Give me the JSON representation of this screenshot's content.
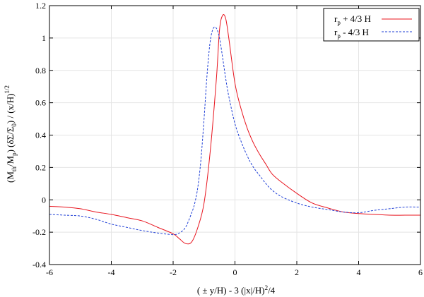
{
  "chart_data": {
    "type": "line",
    "xlabel": "( ± y/H) - 3 (|x|/H)²/4",
    "ylabel": "(M_th/M_p) (δΣ/Σ₀) / (x/H)^1/2",
    "xlim": [
      -6,
      6
    ],
    "ylim": [
      -0.4,
      1.2
    ],
    "xticks": [
      -6,
      -4,
      -2,
      0,
      2,
      4,
      6
    ],
    "yticks": [
      -0.4,
      -0.2,
      0,
      0.2,
      0.4,
      0.6,
      0.8,
      1,
      1.2
    ],
    "grid": true,
    "legend_position": "top-right",
    "series": [
      {
        "name": "rp + 4/3 H",
        "color": "#e8141e",
        "dash": "solid",
        "x": [
          -6.0,
          -5.5,
          -5.0,
          -4.5,
          -4.0,
          -3.5,
          -3.0,
          -2.5,
          -2.0,
          -1.8,
          -1.6,
          -1.4,
          -1.2,
          -1.0,
          -0.8,
          -0.6,
          -0.5,
          -0.4,
          -0.3,
          -0.2,
          0.0,
          0.2,
          0.4,
          0.6,
          0.8,
          1.0,
          1.2,
          1.5,
          2.0,
          2.5,
          3.0,
          3.5,
          4.0,
          4.5,
          5.0,
          5.5,
          6.0
        ],
        "y": [
          -0.04,
          -0.045,
          -0.055,
          -0.075,
          -0.09,
          -0.11,
          -0.13,
          -0.17,
          -0.21,
          -0.24,
          -0.27,
          -0.26,
          -0.17,
          -0.02,
          0.3,
          0.75,
          1.05,
          1.14,
          1.12,
          1.0,
          0.72,
          0.56,
          0.44,
          0.35,
          0.28,
          0.22,
          0.16,
          0.11,
          0.04,
          -0.02,
          -0.05,
          -0.075,
          -0.085,
          -0.09,
          -0.095,
          -0.095,
          -0.095
        ]
      },
      {
        "name": "rp - 4/3 H",
        "color": "#1f3fd6",
        "dash": "dashed",
        "x": [
          -6.0,
          -5.5,
          -5.0,
          -4.5,
          -4.0,
          -3.5,
          -3.0,
          -2.5,
          -2.0,
          -1.8,
          -1.6,
          -1.4,
          -1.3,
          -1.2,
          -1.1,
          -1.0,
          -0.9,
          -0.8,
          -0.7,
          -0.6,
          -0.5,
          -0.4,
          -0.3,
          -0.2,
          0.0,
          0.2,
          0.4,
          0.6,
          0.8,
          1.0,
          1.2,
          1.5,
          2.0,
          2.5,
          3.0,
          3.5,
          4.0,
          4.5,
          5.0,
          5.5,
          6.0
        ],
        "y": [
          -0.09,
          -0.095,
          -0.1,
          -0.12,
          -0.15,
          -0.17,
          -0.19,
          -0.205,
          -0.215,
          -0.205,
          -0.17,
          -0.08,
          -0.02,
          0.08,
          0.25,
          0.5,
          0.78,
          0.98,
          1.06,
          1.06,
          1.0,
          0.88,
          0.75,
          0.64,
          0.47,
          0.36,
          0.27,
          0.2,
          0.15,
          0.1,
          0.06,
          0.02,
          -0.02,
          -0.045,
          -0.06,
          -0.075,
          -0.08,
          -0.065,
          -0.055,
          -0.045,
          -0.045
        ]
      }
    ]
  }
}
